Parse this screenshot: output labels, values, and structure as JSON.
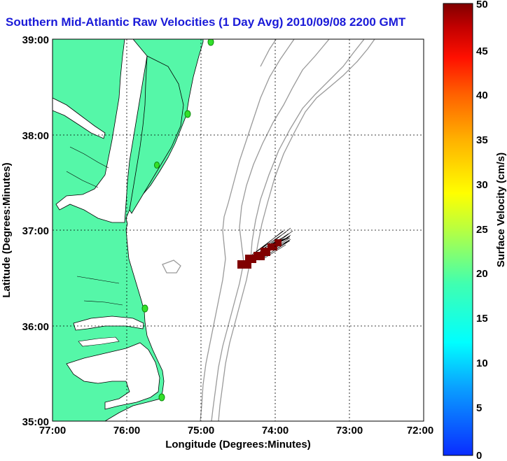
{
  "title": "Southern Mid-Atlantic Raw Velocities (1 Day Avg) 2010/09/08 2200 GMT",
  "xaxis": {
    "label": "Longitude (Degrees:Minutes)",
    "ticks": [
      "77:00",
      "76:00",
      "75:00",
      "74:00",
      "73:00",
      "72:00"
    ]
  },
  "yaxis": {
    "label": "Latitude (Degrees:Minutes)",
    "ticks": [
      "39:00",
      "38:00",
      "37:00",
      "36:00",
      "35:00"
    ]
  },
  "colorbar": {
    "label": "Surface Velocity (cm/s)",
    "ticks": [
      "50",
      "45",
      "40",
      "35",
      "30",
      "25",
      "20",
      "15",
      "10",
      "5",
      "0"
    ],
    "min": 0,
    "max": 50
  },
  "colors": {
    "land": "#55f7a8",
    "water": "#ffffff",
    "coast": "#000000",
    "bathymetry": "#9a9a9a",
    "station": "#33e02a",
    "velocity_cell": "#800000",
    "title": "#1a1ad8"
  }
}
